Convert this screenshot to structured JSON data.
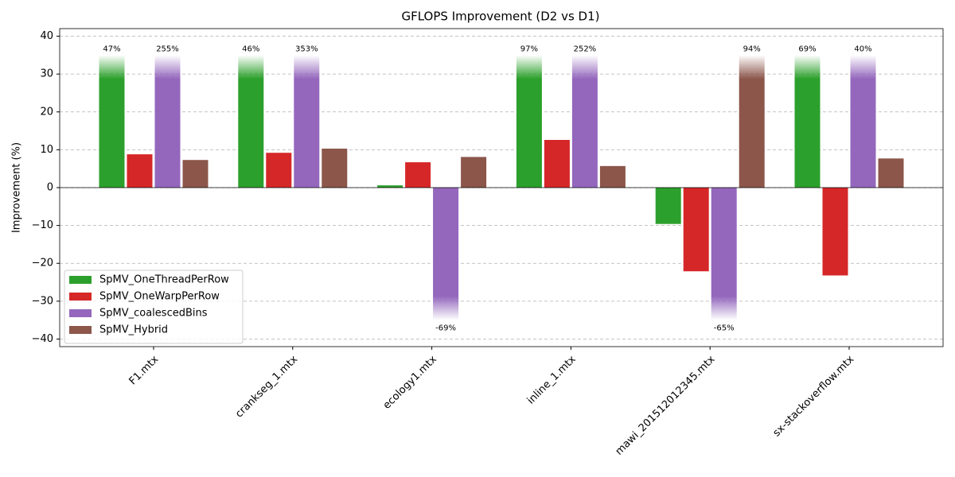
{
  "chart_data": {
    "type": "bar",
    "title": "GFLOPS Improvement (D2 vs D1)",
    "y_label": "Improvement (%)",
    "categories": [
      "F1.mtx",
      "crankseg_1.mtx",
      "ecology1.mtx",
      "inline_1.mtx",
      "mawi_201512012345.mtx",
      "sx-stackoverflow.mtx"
    ],
    "series": [
      {
        "name": "SpMV_OneThreadPerRow",
        "color": "#2ca02c",
        "values": [
          47,
          46,
          0.6,
          97,
          -9.6,
          69
        ],
        "value_labels": [
          "47%",
          "46%",
          null,
          "97%",
          null,
          "69%"
        ]
      },
      {
        "name": "SpMV_OneWarpPerRow",
        "color": "#d62728",
        "values": [
          8.8,
          9.2,
          6.7,
          12.6,
          -22.1,
          -23.2
        ]
      },
      {
        "name": "SpMV_coalescedBins",
        "color": "#9467bd",
        "values": [
          255,
          353,
          -69,
          252,
          -65,
          40
        ],
        "value_labels": [
          "255%",
          "353%",
          "-69%",
          "252%",
          "-65%",
          "40%"
        ]
      },
      {
        "name": "SpMV_Hybrid",
        "color": "#8c564b",
        "values": [
          7.3,
          10.3,
          8.1,
          5.7,
          94,
          7.7
        ],
        "value_labels": [
          null,
          null,
          null,
          null,
          "94%",
          null
        ]
      }
    ],
    "bar_clip": 35,
    "ylim": [
      -42,
      42
    ],
    "yticks": [
      {
        "value": -40,
        "label": "−40"
      },
      {
        "value": -30,
        "label": "−30"
      },
      {
        "value": -20,
        "label": "−20"
      },
      {
        "value": -10,
        "label": "−10"
      },
      0,
      10,
      20,
      30,
      40
    ],
    "grid": true,
    "legend": "lower left"
  }
}
